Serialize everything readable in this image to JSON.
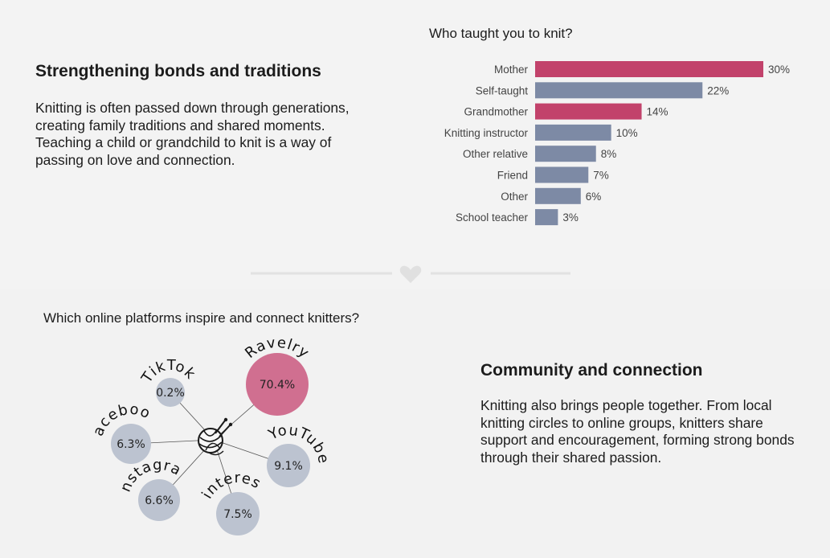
{
  "sections": {
    "bonds": {
      "heading": "Strengthening bonds and traditions",
      "body": "Knitting is often passed down through generations, creating family traditions and shared moments. Teaching a child or grandchild to knit is a way of passing on love and connection."
    },
    "community": {
      "heading": "Community and connection",
      "body": "Knitting also brings people together. From local knitting circles to online groups, knitters share support and encouragement, forming strong bonds through their shared passion."
    }
  },
  "divider": {
    "icon": "heart-icon"
  },
  "chart_data": [
    {
      "type": "bar",
      "orientation": "horizontal",
      "title": "Who taught you to knit?",
      "categories": [
        "Mother",
        "Self-taught",
        "Grandmother",
        "Knitting instructor",
        "Other relative",
        "Friend",
        "Other",
        "School teacher"
      ],
      "values": [
        30,
        22,
        14,
        10,
        8,
        7,
        6,
        3
      ],
      "value_labels": [
        "30%",
        "22%",
        "14%",
        "10%",
        "8%",
        "7%",
        "6%",
        "3%"
      ],
      "highlighted": [
        "Mother",
        "Grandmother"
      ],
      "colors": {
        "highlight": "#c2426b",
        "default": "#7d8aa5"
      },
      "xlim": [
        0,
        30
      ],
      "grid": false
    },
    {
      "type": "network",
      "title": "Which online platforms inspire and connect knitters?",
      "center_icon": "yarn-ball-icon",
      "nodes": [
        {
          "name": "Ravelry",
          "value": 70.4,
          "label": "70.4%"
        },
        {
          "name": "TikTok",
          "value": 0.2,
          "label": "0.2%"
        },
        {
          "name": "Facebook",
          "value": 6.3,
          "label": "6.3%"
        },
        {
          "name": "YouTube",
          "value": 9.1,
          "label": "9.1%"
        },
        {
          "name": "Instagram",
          "value": 6.6,
          "label": "6.6%"
        },
        {
          "name": "Pinterest",
          "value": 7.5,
          "label": "7.5%"
        }
      ],
      "colors": {
        "highlight": "#d06f90",
        "default": "#bcc3d0"
      }
    }
  ]
}
